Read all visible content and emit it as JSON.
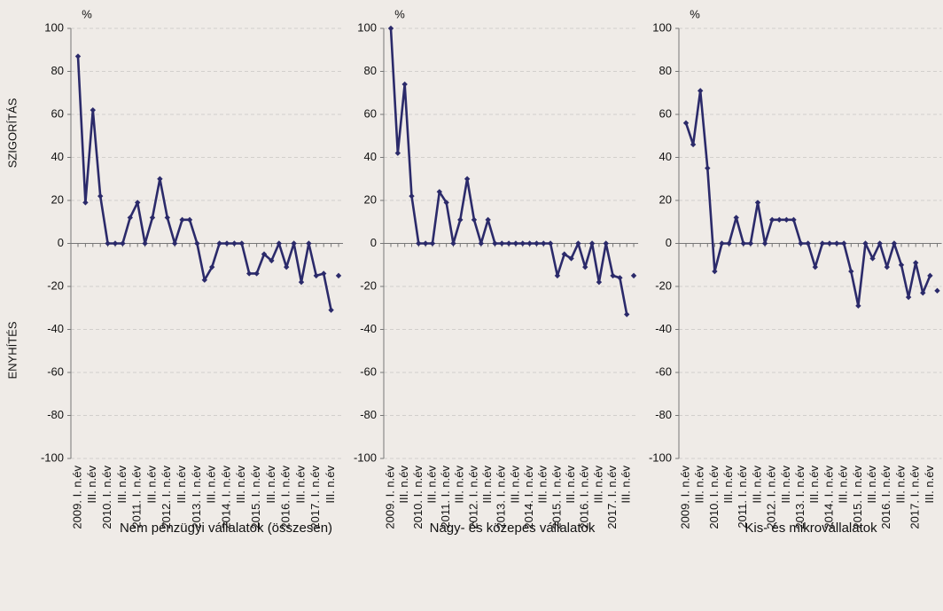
{
  "chart_data": [
    {
      "type": "line",
      "unit": "%",
      "title": "Nem pénzügyi vállalatok (összesen)",
      "ylabel_top": "SZIGORÍTÁS",
      "ylabel_bottom": "ENYHÍTÉS",
      "categories": [
        "2009. I. n.év",
        null,
        "III. n.év",
        null,
        "2010. I. n.év",
        null,
        "III. n.év",
        null,
        "2011. I. n.év",
        null,
        "III. n.év",
        null,
        "2012. I. n.év",
        null,
        "III. n.év",
        null,
        "2013. I. n.év",
        null,
        "III. n.év",
        null,
        "2014. I. n.év",
        null,
        "III. n.év",
        null,
        "2015. I. n.év",
        null,
        "III. n.év",
        null,
        "2016. I. n.év",
        null,
        "III. n.év",
        null,
        "2017. I. n.év",
        null,
        "III. n.év",
        null
      ],
      "series": [
        {
          "color": "#2b2a6a",
          "values": [
            87,
            19,
            62,
            22,
            0,
            0,
            0,
            12,
            19,
            0,
            12,
            30,
            12,
            0,
            11,
            11,
            0,
            -17,
            -11,
            0,
            0,
            0,
            0,
            -14,
            -14,
            -5,
            -8,
            0,
            -11,
            0,
            -18,
            0,
            -15,
            -14,
            -31,
            null
          ]
        },
        {
          "color": "#2b2a6a",
          "line": false,
          "values": [
            null,
            null,
            null,
            null,
            null,
            null,
            null,
            null,
            null,
            null,
            null,
            null,
            null,
            null,
            null,
            null,
            null,
            null,
            null,
            null,
            null,
            null,
            null,
            null,
            null,
            null,
            null,
            null,
            null,
            null,
            null,
            null,
            null,
            null,
            null,
            -15
          ]
        }
      ],
      "ylim": [
        -100,
        100
      ],
      "yticks": [
        -100,
        -80,
        -60,
        -40,
        -20,
        0,
        20,
        40,
        60,
        80,
        100
      ],
      "grid": true
    },
    {
      "type": "line",
      "unit": "%",
      "title": "Nagy- és közepes vállalatok",
      "categories": [
        "2009. I. n.év",
        null,
        "III. n.év",
        null,
        "2010. I. n.év",
        null,
        "III. n.év",
        null,
        "2011. I. n.év",
        null,
        "III. n.év",
        null,
        "2012. I. n.év",
        null,
        "III. n.év",
        null,
        "2013. I. n.év",
        null,
        "III. n.év",
        null,
        "2014. I. n.év",
        null,
        "III. n.év",
        null,
        "2015. I. n.év",
        null,
        "III. n.év",
        null,
        "2016. I. n.év",
        null,
        "III. n.év",
        null,
        "2017. I. n.év",
        null,
        "III. n.év",
        null
      ],
      "series": [
        {
          "color": "#2b2a6a",
          "values": [
            100,
            42,
            74,
            22,
            0,
            0,
            0,
            24,
            19,
            0,
            11,
            30,
            11,
            0,
            11,
            0,
            0,
            0,
            0,
            0,
            0,
            0,
            0,
            0,
            -15,
            -5,
            -7,
            0,
            -11,
            0,
            -18,
            0,
            -15,
            -16,
            -33,
            null
          ]
        },
        {
          "color": "#2b2a6a",
          "line": false,
          "values": [
            null,
            null,
            null,
            null,
            null,
            null,
            null,
            null,
            null,
            null,
            null,
            null,
            null,
            null,
            null,
            null,
            null,
            null,
            null,
            null,
            null,
            null,
            null,
            null,
            null,
            null,
            null,
            null,
            null,
            null,
            null,
            null,
            null,
            null,
            null,
            -15
          ]
        }
      ],
      "ylim": [
        -100,
        100
      ],
      "yticks": [
        -100,
        -80,
        -60,
        -40,
        -20,
        0,
        20,
        40,
        60,
        80,
        100
      ],
      "grid": true
    },
    {
      "type": "line",
      "unit": "%",
      "title": "Kis- és mikrovállalatok",
      "categories": [
        "2009. I. n.év",
        null,
        "III. n.év",
        null,
        "2010. I. n.év",
        null,
        "III. n.év",
        null,
        "2011. I. n.év",
        null,
        "III. n.év",
        null,
        "2012. I. n.év",
        null,
        "III. n.év",
        null,
        "2013. I. n.év",
        null,
        "III. n.év",
        null,
        "2014. I. n.év",
        null,
        "III. n.év",
        null,
        "2015. I. n.év",
        null,
        "III. n.év",
        null,
        "2016. I. n.év",
        null,
        "III. n.év",
        null,
        "2017. I. n.év",
        null,
        "III. n.év",
        null
      ],
      "series": [
        {
          "color": "#2b2a6a",
          "values": [
            56,
            46,
            71,
            35,
            -13,
            0,
            0,
            12,
            0,
            0,
            19,
            0,
            11,
            11,
            11,
            11,
            0,
            0,
            -11,
            0,
            0,
            0,
            0,
            -13,
            -29,
            0,
            -7,
            0,
            -11,
            0,
            -10,
            -25,
            -9,
            -23,
            -15,
            null
          ]
        },
        {
          "color": "#2b2a6a",
          "line": false,
          "values": [
            null,
            null,
            null,
            null,
            null,
            null,
            null,
            null,
            null,
            null,
            null,
            null,
            null,
            null,
            null,
            null,
            null,
            null,
            null,
            null,
            null,
            null,
            null,
            null,
            null,
            null,
            null,
            null,
            null,
            null,
            null,
            null,
            null,
            null,
            null,
            -22
          ]
        }
      ],
      "ylim": [
        -100,
        100
      ],
      "yticks": [
        -100,
        -80,
        -60,
        -40,
        -20,
        0,
        20,
        40,
        60,
        80,
        100
      ],
      "grid": true
    }
  ]
}
